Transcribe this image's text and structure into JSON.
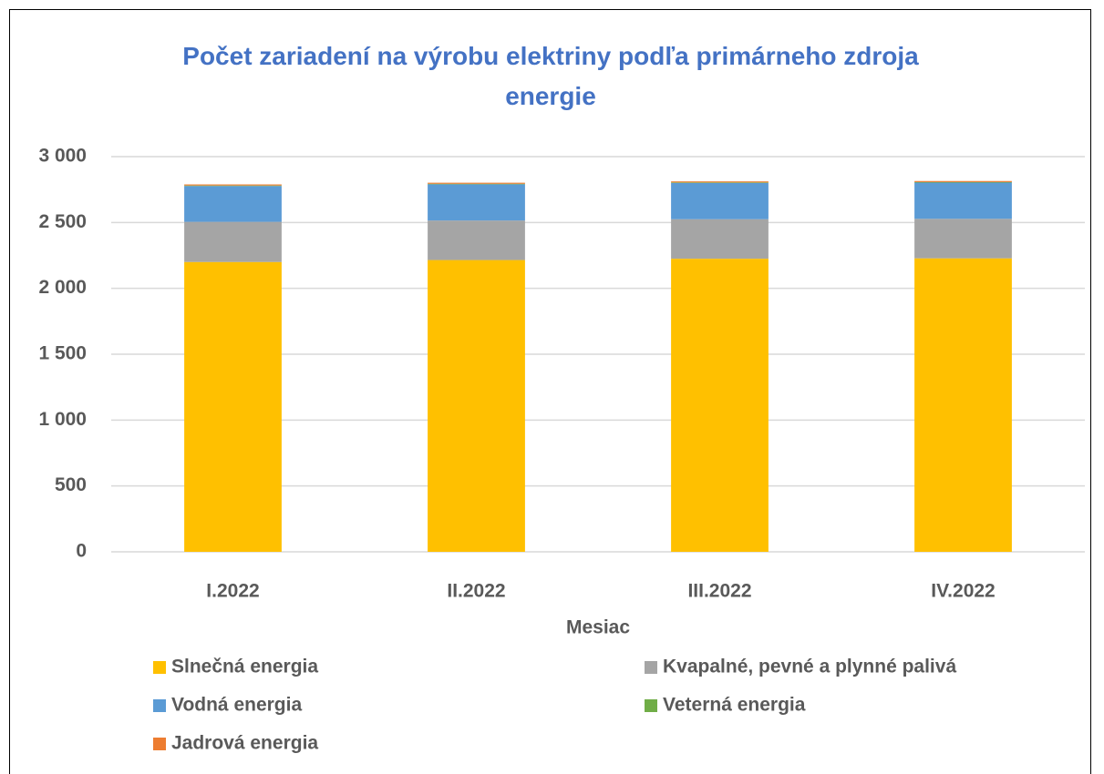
{
  "chart_data": {
    "type": "stacked_bar",
    "title": "Počet zariadení na výrobu elektriny podľa primárneho zdroja energie",
    "x_label": "Mesiac",
    "categories": [
      "I.2022",
      "II.2022",
      "III.2022",
      "IV.2022"
    ],
    "series": [
      {
        "name": "Slnečná energia",
        "color": "#ffc000",
        "values": [
          2200,
          2215,
          2225,
          2228
        ]
      },
      {
        "name": "Kvapalné, pevné a plynné palivá",
        "color": "#a5a5a5",
        "values": [
          305,
          300,
          300,
          300
        ]
      },
      {
        "name": "Vodná energia",
        "color": "#5b9bd5",
        "values": [
          272,
          275,
          275,
          275
        ]
      },
      {
        "name": "Veterná energia",
        "color": "#70ad47",
        "values": [
          4,
          4,
          4,
          4
        ]
      },
      {
        "name": "Jadrová energia",
        "color": "#ed7d31",
        "values": [
          8,
          8,
          8,
          8
        ]
      }
    ],
    "ylim": [
      0,
      3000
    ],
    "yticks": [
      0,
      500,
      {
        "value": 1000,
        "label": "1 000"
      },
      {
        "value": 1500,
        "label": "1 500"
      },
      {
        "value": 2000,
        "label": "2 000"
      },
      {
        "value": 2500,
        "label": "2 500"
      },
      {
        "value": 3000,
        "label": "3 000"
      }
    ],
    "grid": true
  }
}
